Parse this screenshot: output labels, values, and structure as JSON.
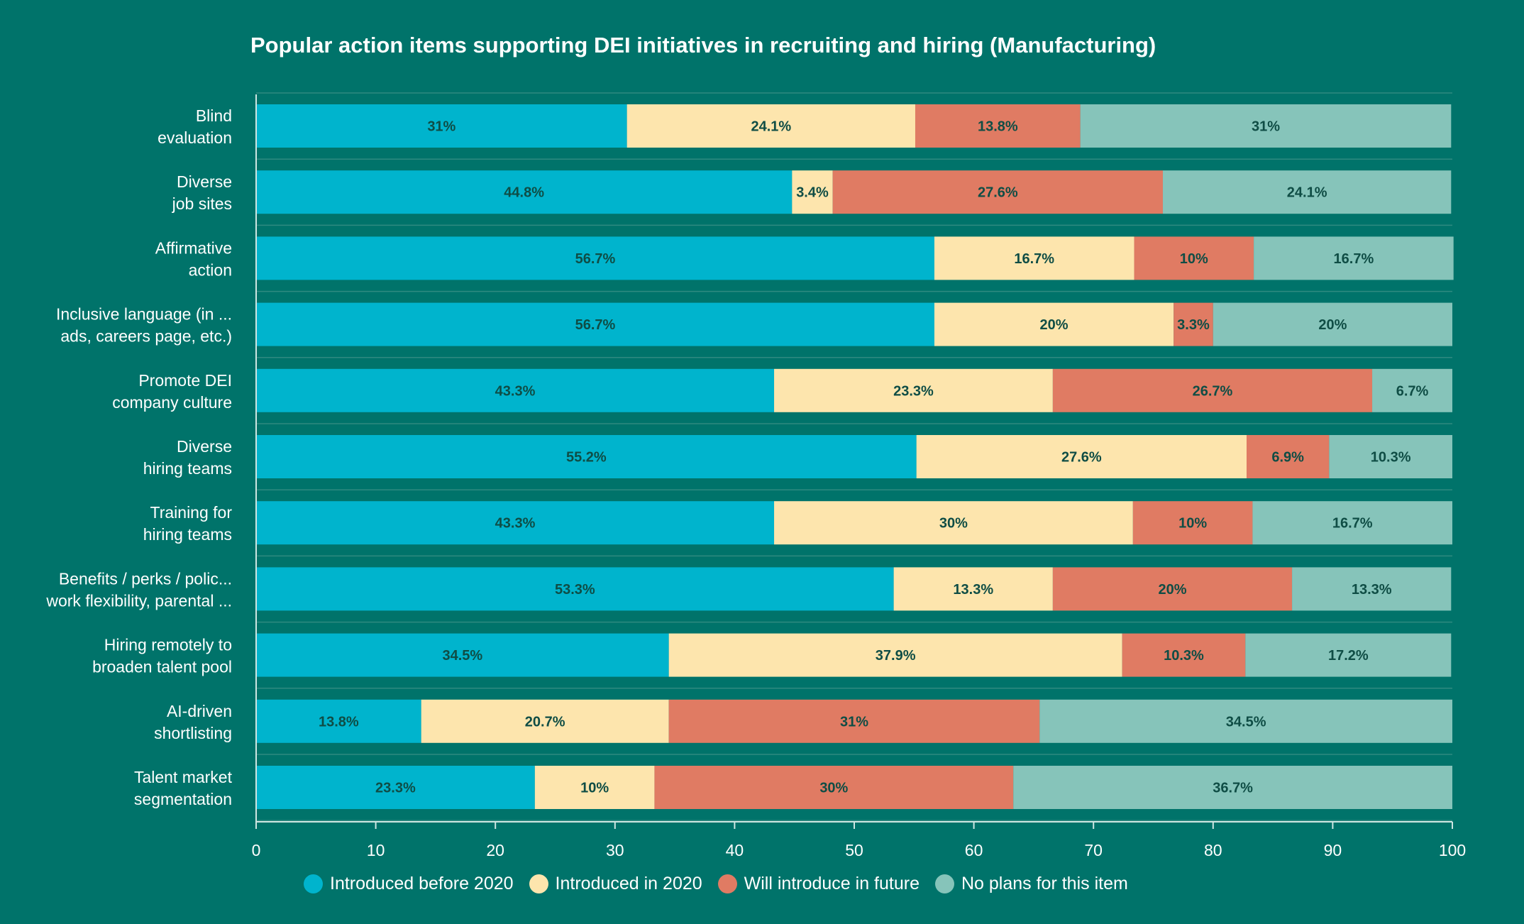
{
  "chart_data": {
    "type": "bar",
    "orientation": "horizontal",
    "stacked": true,
    "title": "Popular action items supporting DEI initiatives in recruiting and hiring (Manufacturing)",
    "categories": [
      [
        "Blind",
        "evaluation"
      ],
      [
        "Diverse",
        "job sites"
      ],
      [
        "Affirmative",
        "action"
      ],
      [
        "Inclusive language (in ...",
        "ads, careers page, etc.)"
      ],
      [
        "Promote DEI",
        "company culture"
      ],
      [
        "Diverse",
        "hiring teams"
      ],
      [
        "Training for",
        "hiring teams"
      ],
      [
        "Benefits / perks / polic...",
        "work flexibility, parental ..."
      ],
      [
        "Hiring remotely to",
        "broaden talent pool"
      ],
      [
        "AI-driven",
        "shortlisting"
      ],
      [
        "Talent market",
        "segmentation"
      ]
    ],
    "series": [
      {
        "name": "Introduced before 2020",
        "color": "#00b4cd",
        "values": [
          31,
          44.8,
          56.7,
          56.7,
          43.3,
          55.2,
          43.3,
          53.3,
          34.5,
          13.8,
          23.3
        ],
        "labels": [
          "31%",
          "44.8%",
          "56.7%",
          "56.7%",
          "43.3%",
          "55.2%",
          "43.3%",
          "53.3%",
          "34.5%",
          "13.8%",
          "23.3%"
        ]
      },
      {
        "name": "Introduced in 2020",
        "color": "#fde5ad",
        "values": [
          24.1,
          3.4,
          16.7,
          20,
          23.3,
          27.6,
          30,
          13.3,
          37.9,
          20.7,
          10
        ],
        "labels": [
          "24.1%",
          "3.4%",
          "16.7%",
          "20%",
          "23.3%",
          "27.6%",
          "30%",
          "13.3%",
          "37.9%",
          "20.7%",
          "10%"
        ]
      },
      {
        "name": "Will introduce in future",
        "color": "#e07b63",
        "values": [
          13.8,
          27.6,
          10,
          3.3,
          26.7,
          6.9,
          10,
          20,
          10.3,
          31,
          30
        ],
        "labels": [
          "13.8%",
          "27.6%",
          "10%",
          "3.3%",
          "26.7%",
          "6.9%",
          "10%",
          "20%",
          "10.3%",
          "31%",
          "30%"
        ]
      },
      {
        "name": "No plans for this item",
        "color": "#86c4ba",
        "values": [
          31,
          24.1,
          16.7,
          20,
          6.7,
          10.3,
          16.7,
          13.3,
          17.2,
          34.5,
          36.7
        ],
        "labels": [
          "31%",
          "24.1%",
          "16.7%",
          "20%",
          "6.7%",
          "10.3%",
          "16.7%",
          "13.3%",
          "17.2%",
          "34.5%",
          "36.7%"
        ]
      }
    ],
    "xlim": [
      0,
      100
    ],
    "xticks": [
      "0",
      "10",
      "20",
      "30",
      "40",
      "50",
      "60",
      "70",
      "80",
      "90",
      "100"
    ],
    "grid": true,
    "legend_position": "bottom",
    "background_color": "#00736a",
    "label_color": "#0f4d45",
    "text_color": "#ffffff"
  }
}
